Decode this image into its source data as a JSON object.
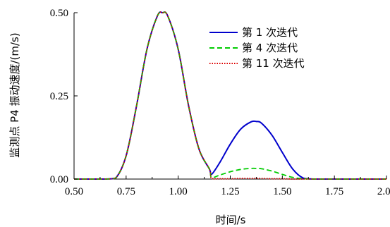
{
  "chart_data": {
    "type": "line",
    "xlabel": "时间/s",
    "ylabel": "监测点 P4 振动速度/(m/s)",
    "xlim": [
      0.5,
      2.0
    ],
    "ylim": [
      0.0,
      0.5
    ],
    "xticks": [
      "0.50",
      "0.75",
      "1.00",
      "1.25",
      "1.50",
      "1.75",
      "2.00"
    ],
    "yticks": [
      "0.00",
      "0.25",
      "0.50"
    ],
    "grid": false,
    "legend_position": "top-right",
    "x": [
      0.5,
      0.55,
      0.6,
      0.65,
      0.7,
      0.75,
      0.8,
      0.85,
      0.9,
      0.925,
      0.95,
      1.0,
      1.05,
      1.1,
      1.15,
      1.16,
      1.2,
      1.25,
      1.3,
      1.35,
      1.375,
      1.4,
      1.45,
      1.5,
      1.55,
      1.6,
      1.65,
      1.7,
      1.8,
      1.9,
      2.0
    ],
    "series": [
      {
        "name": "第 1 次迭代",
        "color": "#0000cc",
        "dash": "solid",
        "values": [
          0,
          0,
          0,
          0,
          0.003,
          0.07,
          0.22,
          0.39,
          0.49,
          0.5,
          0.49,
          0.39,
          0.22,
          0.09,
          0.03,
          0.014,
          0.05,
          0.105,
          0.15,
          0.172,
          0.173,
          0.168,
          0.132,
          0.08,
          0.03,
          0.003,
          0,
          0,
          0,
          0,
          0
        ]
      },
      {
        "name": "第 4 次迭代",
        "color": "#00cc00",
        "dash": "dashed",
        "values": [
          0,
          0,
          0,
          0,
          0.003,
          0.07,
          0.22,
          0.39,
          0.49,
          0.5,
          0.49,
          0.39,
          0.22,
          0.09,
          0.03,
          0.005,
          0.012,
          0.022,
          0.029,
          0.032,
          0.032,
          0.031,
          0.024,
          0.014,
          0.005,
          0.001,
          0,
          0,
          0,
          0,
          0
        ]
      },
      {
        "name": "第 11 次迭代",
        "color": "#dd0000",
        "dash": "dotted",
        "values": [
          0,
          0,
          0,
          0,
          0.003,
          0.07,
          0.22,
          0.39,
          0.49,
          0.5,
          0.49,
          0.39,
          0.22,
          0.09,
          0.03,
          0.002,
          0.001,
          0.001,
          0.002,
          0.002,
          0.002,
          0.002,
          0.001,
          0.001,
          0,
          0,
          0,
          0,
          0,
          0,
          0
        ]
      }
    ]
  }
}
